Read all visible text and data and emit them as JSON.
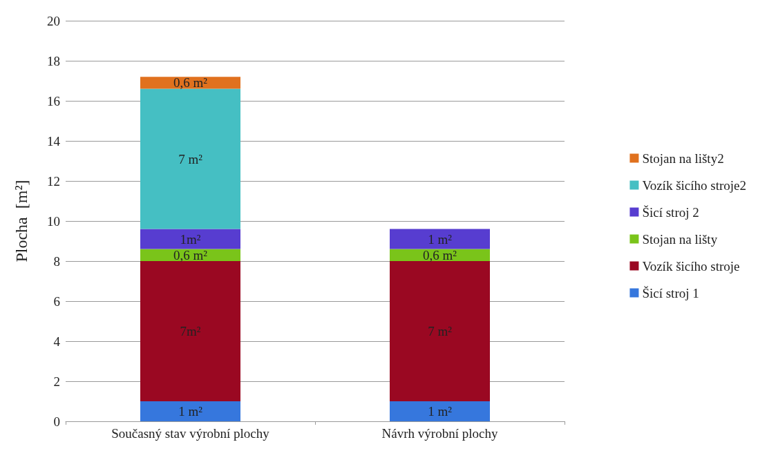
{
  "chart_data": {
    "type": "bar",
    "stacked": true,
    "ylabel": "Plocha  [m²]",
    "categories": [
      "Současný stav výrobní plochy",
      "Návrh výrobní plochy"
    ],
    "series": [
      {
        "name": "Šicí stroj 1",
        "color": "#3677dd",
        "values": [
          1,
          1
        ],
        "value_labels": [
          "1 m²",
          "1 m²"
        ]
      },
      {
        "name": "Vozík šicího stroje",
        "color": "#9a0822",
        "values": [
          7,
          7
        ],
        "value_labels": [
          "7m²",
          "7 m²"
        ]
      },
      {
        "name": "Stojan na lišty",
        "color": "#7ac41a",
        "values": [
          0.6,
          0.6
        ],
        "value_labels": [
          "0,6 m²",
          "0,6 m²"
        ]
      },
      {
        "name": "Šicí stroj 2",
        "color": "#573dd0",
        "values": [
          1,
          1
        ],
        "value_labels": [
          "1m²",
          "1 m²"
        ]
      },
      {
        "name": "Vozík šicího stroje2",
        "color": "#45bfc3",
        "values": [
          7,
          null
        ],
        "value_labels": [
          "7 m²",
          null
        ]
      },
      {
        "name": "Stojan na lišty2",
        "color": "#e0711e",
        "values": [
          0.6,
          null
        ],
        "value_labels": [
          "0,6 m²",
          null
        ]
      }
    ],
    "ylim": [
      0,
      20
    ],
    "yticks": [
      0,
      2,
      4,
      6,
      8,
      10,
      12,
      14,
      16,
      18,
      20
    ],
    "grid": "y",
    "legend": "right"
  }
}
